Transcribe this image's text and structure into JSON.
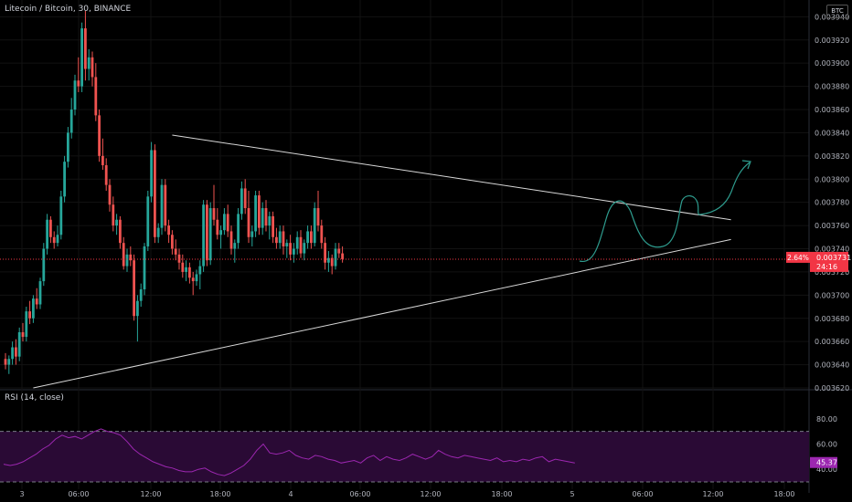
{
  "chart_title": "Litecoin / Bitcoin, 30, BINANCE",
  "currency_badge": "BTC",
  "rsi_title": "RSI (14, close)",
  "price_badge": {
    "change": "2.64%",
    "price": "0.003731",
    "countdown": "24:16",
    "color": "#f23645"
  },
  "rsi_badge": {
    "value": "45.37",
    "color": "#9c27b0"
  },
  "colors": {
    "up": "#26a69a",
    "down": "#ef5350",
    "background": "#000000",
    "rsi_line": "#9c27b0",
    "rsi_band": "#2a0a35",
    "trendline": "#d8d8d8",
    "drawing": "#2e9c8e"
  },
  "chart_data": [
    {
      "type": "candlestick",
      "title": "Litecoin / Bitcoin, 30, BINANCE",
      "y_ticks": [
        "0.003940",
        "0.003920",
        "0.003900",
        "0.003880",
        "0.003860",
        "0.003840",
        "0.003820",
        "0.003800",
        "0.003780",
        "0.003760",
        "0.003740",
        "0.003720",
        "0.003700",
        "0.003680",
        "0.003660",
        "0.003640",
        "0.003620"
      ],
      "ylim": [
        0.00362,
        0.003945
      ],
      "x_ticks": [
        "3",
        "06:00",
        "12:00",
        "18:00",
        "4",
        "06:00",
        "12:00",
        "18:00",
        "5",
        "06:00",
        "12:00",
        "18:00"
      ],
      "last_price": 0.003731,
      "candles": [
        [
          0.003645,
          0.00365,
          0.003636,
          0.00364
        ],
        [
          0.00364,
          0.003648,
          0.003632,
          0.003645
        ],
        [
          0.003645,
          0.00366,
          0.00364,
          0.003655
        ],
        [
          0.003655,
          0.003662,
          0.00364,
          0.003647
        ],
        [
          0.003647,
          0.003672,
          0.003643,
          0.003668
        ],
        [
          0.003668,
          0.003676,
          0.00366,
          0.003664
        ],
        [
          0.003664,
          0.00369,
          0.00366,
          0.003686
        ],
        [
          0.003686,
          0.003695,
          0.003675,
          0.00368
        ],
        [
          0.00368,
          0.0037,
          0.003676,
          0.003697
        ],
        [
          0.003697,
          0.003706,
          0.003688,
          0.003692
        ],
        [
          0.003692,
          0.003715,
          0.003688,
          0.003712
        ],
        [
          0.003712,
          0.003745,
          0.003708,
          0.00374
        ],
        [
          0.00374,
          0.00377,
          0.003735,
          0.003765
        ],
        [
          0.003765,
          0.003768,
          0.003745,
          0.00375
        ],
        [
          0.00375,
          0.003755,
          0.00374,
          0.003745
        ],
        [
          0.003745,
          0.00376,
          0.003742,
          0.003752
        ],
        [
          0.003752,
          0.00379,
          0.003748,
          0.003785
        ],
        [
          0.003785,
          0.00382,
          0.00378,
          0.003815
        ],
        [
          0.003815,
          0.003845,
          0.00381,
          0.00384
        ],
        [
          0.00384,
          0.00387,
          0.003835,
          0.00386
        ],
        [
          0.00386,
          0.00389,
          0.003855,
          0.003885
        ],
        [
          0.003885,
          0.003905,
          0.003875,
          0.00388
        ],
        [
          0.00388,
          0.003935,
          0.003875,
          0.00393
        ],
        [
          0.00393,
          0.003945,
          0.003885,
          0.003895
        ],
        [
          0.003895,
          0.003912,
          0.003885,
          0.003905
        ],
        [
          0.003905,
          0.00391,
          0.00388,
          0.003888
        ],
        [
          0.003888,
          0.0039,
          0.00385,
          0.003855
        ],
        [
          0.003855,
          0.00386,
          0.003815,
          0.00382
        ],
        [
          0.00382,
          0.003835,
          0.003808,
          0.003812
        ],
        [
          0.003812,
          0.003818,
          0.00379,
          0.003795
        ],
        [
          0.003795,
          0.0038,
          0.003772,
          0.003778
        ],
        [
          0.003778,
          0.003785,
          0.003755,
          0.00376
        ],
        [
          0.00376,
          0.00377,
          0.003752,
          0.003765
        ],
        [
          0.003765,
          0.003768,
          0.00374,
          0.003745
        ],
        [
          0.003745,
          0.00375,
          0.003722,
          0.003725
        ],
        [
          0.003725,
          0.00374,
          0.00372,
          0.003735
        ],
        [
          0.003735,
          0.003742,
          0.003725,
          0.00373
        ],
        [
          0.00373,
          0.003735,
          0.003678,
          0.003682
        ],
        [
          0.003682,
          0.0037,
          0.00366,
          0.003695
        ],
        [
          0.003695,
          0.00371,
          0.00369,
          0.003705
        ],
        [
          0.003705,
          0.003745,
          0.0037,
          0.003742
        ],
        [
          0.003742,
          0.00379,
          0.003738,
          0.003785
        ],
        [
          0.003785,
          0.003832,
          0.00378,
          0.003825
        ],
        [
          0.003825,
          0.00383,
          0.003745,
          0.00375
        ],
        [
          0.00375,
          0.003762,
          0.003745,
          0.003758
        ],
        [
          0.003758,
          0.0038,
          0.003752,
          0.003795
        ],
        [
          0.003795,
          0.0038,
          0.003755,
          0.00376
        ],
        [
          0.00376,
          0.003765,
          0.003745,
          0.003752
        ],
        [
          0.003752,
          0.003756,
          0.003735,
          0.00374
        ],
        [
          0.00374,
          0.003748,
          0.00373,
          0.003735
        ],
        [
          0.003735,
          0.00374,
          0.003722,
          0.003728
        ],
        [
          0.003728,
          0.003735,
          0.003715,
          0.00372
        ],
        [
          0.00372,
          0.00373,
          0.003712,
          0.003724
        ],
        [
          0.003724,
          0.003728,
          0.00371,
          0.003715
        ],
        [
          0.003715,
          0.00372,
          0.0037,
          0.003712
        ],
        [
          0.003712,
          0.003722,
          0.003708,
          0.003718
        ],
        [
          0.003718,
          0.00373,
          0.003705,
          0.003725
        ],
        [
          0.003725,
          0.003782,
          0.00372,
          0.003778
        ],
        [
          0.003778,
          0.003782,
          0.003725,
          0.00373
        ],
        [
          0.00373,
          0.00378,
          0.003726,
          0.003775
        ],
        [
          0.003775,
          0.003795,
          0.00376,
          0.003765
        ],
        [
          0.003765,
          0.003775,
          0.003748,
          0.003752
        ],
        [
          0.003752,
          0.00376,
          0.00374,
          0.003756
        ],
        [
          0.003756,
          0.003775,
          0.003752,
          0.00377
        ],
        [
          0.00377,
          0.003778,
          0.00375,
          0.003755
        ],
        [
          0.003755,
          0.00376,
          0.003735,
          0.00374
        ],
        [
          0.00374,
          0.003748,
          0.003728,
          0.003745
        ],
        [
          0.003745,
          0.003775,
          0.00374,
          0.00377
        ],
        [
          0.00377,
          0.003798,
          0.003765,
          0.003792
        ],
        [
          0.003792,
          0.0038,
          0.00377,
          0.003775
        ],
        [
          0.003775,
          0.00379,
          0.003745,
          0.00375
        ],
        [
          0.00375,
          0.00376,
          0.003742,
          0.003755
        ],
        [
          0.003755,
          0.00379,
          0.00375,
          0.003786
        ],
        [
          0.003786,
          0.00379,
          0.003752,
          0.003758
        ],
        [
          0.003758,
          0.00378,
          0.003752,
          0.003775
        ],
        [
          0.003775,
          0.003782,
          0.003755,
          0.00376
        ],
        [
          0.00376,
          0.003772,
          0.003748,
          0.003768
        ],
        [
          0.003768,
          0.003772,
          0.003745,
          0.00375
        ],
        [
          0.00375,
          0.003758,
          0.00374,
          0.003745
        ],
        [
          0.003745,
          0.00376,
          0.00374,
          0.003755
        ],
        [
          0.003755,
          0.00376,
          0.003735,
          0.003742
        ],
        [
          0.003742,
          0.003748,
          0.003732,
          0.003745
        ],
        [
          0.003745,
          0.003752,
          0.00373,
          0.003735
        ],
        [
          0.003735,
          0.003745,
          0.003728,
          0.00374
        ],
        [
          0.00374,
          0.003755,
          0.003735,
          0.00375
        ],
        [
          0.00375,
          0.003756,
          0.003732,
          0.003736
        ],
        [
          0.003736,
          0.003748,
          0.00373,
          0.003745
        ],
        [
          0.003745,
          0.00376,
          0.00374,
          0.003755
        ],
        [
          0.003755,
          0.00376,
          0.00374,
          0.003745
        ],
        [
          0.003745,
          0.00378,
          0.003742,
          0.003775
        ],
        [
          0.003775,
          0.00379,
          0.003755,
          0.00376
        ],
        [
          0.00376,
          0.003765,
          0.00374,
          0.003745
        ],
        [
          0.003745,
          0.00375,
          0.003722,
          0.003728
        ],
        [
          0.003728,
          0.003738,
          0.00372,
          0.003732
        ],
        [
          0.003732,
          0.003735,
          0.003718,
          0.003725
        ],
        [
          0.003725,
          0.003745,
          0.003722,
          0.00374
        ],
        [
          0.00374,
          0.003745,
          0.003732,
          0.003736
        ],
        [
          0.003736,
          0.003742,
          0.003728,
          0.003731
        ]
      ],
      "trendlines": [
        {
          "from": {
            "candle": 48,
            "price": 0.003838
          },
          "to": {
            "candle": 152,
            "price": 0.003765
          }
        },
        {
          "from": {
            "candle": 8,
            "price": 0.00362
          },
          "to": {
            "candle": 152,
            "price": 0.003748
          }
        }
      ]
    },
    {
      "type": "line",
      "title": "RSI (14, close)",
      "y_ticks": [
        "80.00",
        "60.00",
        "40.00"
      ],
      "ylim": [
        30,
        90
      ],
      "bands": [
        70,
        30
      ],
      "last_value": 45.37,
      "values": [
        44,
        43,
        44,
        46,
        49,
        52,
        56,
        59,
        64,
        67,
        65,
        66,
        64,
        67,
        70,
        72,
        70,
        69,
        67,
        62,
        56,
        52,
        49,
        46,
        44,
        42,
        41,
        39,
        38,
        38,
        40,
        41,
        38,
        36,
        35,
        37,
        40,
        43,
        48,
        55,
        60,
        53,
        52,
        53,
        55,
        51,
        49,
        48,
        51,
        50,
        48,
        47,
        45,
        46,
        47,
        45,
        49,
        51,
        47,
        50,
        48,
        47,
        49,
        52,
        50,
        48,
        50,
        55,
        52,
        50,
        49,
        51,
        50,
        49,
        48,
        47,
        49,
        46,
        47,
        46,
        48,
        47,
        49,
        50,
        46,
        48,
        47,
        46,
        45
      ]
    }
  ]
}
